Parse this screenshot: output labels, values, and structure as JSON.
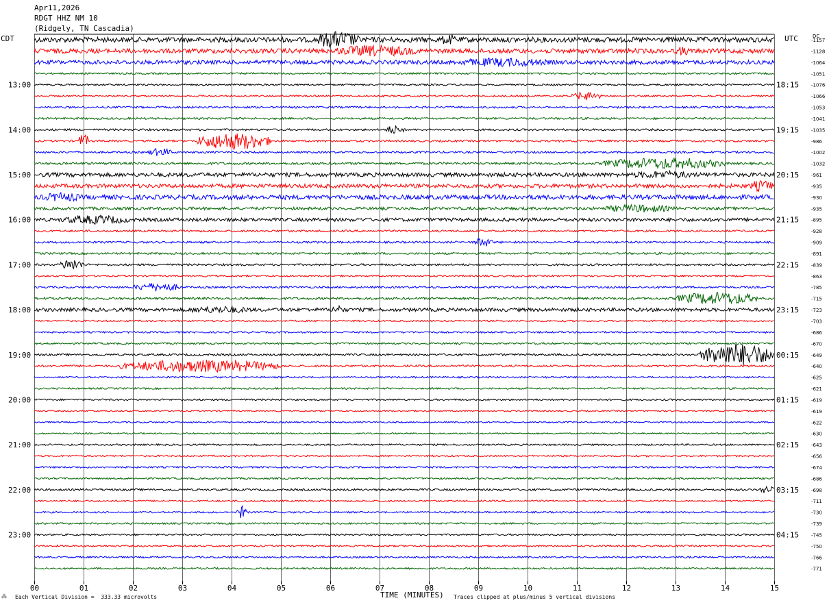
{
  "header": {
    "date": "Apr11,2026",
    "station": "RDGT HHZ NM 10",
    "location": "(Ridgely, TN Cascadia)"
  },
  "left_zone": "CDT",
  "right_zone": "UTC",
  "dc_header": "DC",
  "footer": {
    "marker": "⁂",
    "division": "Each Vertical Division =  333.33 microvolts",
    "clip": "Traces clipped at plus/minus 5 vertical divisions"
  },
  "colors": {
    "black": "#000000",
    "red": "#ff0000",
    "blue": "#0000ff",
    "green": "#006400",
    "grid": "#000000"
  },
  "chart_data": {
    "type": "line",
    "title": "RDGT HHZ NM 10",
    "xlabel": "TIME (MINUTES)",
    "ylabel": "",
    "x_ticks": [
      "00",
      "01",
      "02",
      "03",
      "04",
      "05",
      "06",
      "07",
      "08",
      "09",
      "10",
      "11",
      "12",
      "13",
      "14",
      "15"
    ],
    "xlim": [
      0,
      15
    ],
    "grid": true,
    "trace_color_cycle": [
      "black",
      "red",
      "blue",
      "green"
    ],
    "left_hour_labels": [
      "13:00",
      "14:00",
      "15:00",
      "16:00",
      "17:00",
      "18:00",
      "19:00",
      "20:00",
      "21:00",
      "22:00",
      "23:00"
    ],
    "right_hour_labels": [
      "18:15",
      "19:15",
      "20:15",
      "21:15",
      "22:15",
      "23:15",
      "00:15",
      "01:15",
      "02:15",
      "03:15",
      "04:15"
    ],
    "dc_offsets": [
      -1157,
      -1128,
      -1064,
      -1051,
      -1076,
      -1066,
      -1053,
      -1041,
      -1035,
      -986,
      -1002,
      -1032,
      -961,
      -935,
      -930,
      -935,
      -895,
      -928,
      -909,
      -891,
      -839,
      -863,
      -785,
      -715,
      -723,
      -703,
      -686,
      -670,
      -649,
      -640,
      -625,
      -621,
      -619,
      -619,
      -622,
      -630,
      -643,
      -656,
      -674,
      -686,
      -698,
      -711,
      -730,
      -739,
      -745,
      -750,
      -766,
      -771
    ],
    "traces": [
      {
        "amp": 0.9,
        "events": [
          {
            "start": 5.7,
            "end": 6.6,
            "amp": 3
          },
          {
            "start": 8.2,
            "end": 8.6,
            "amp": 1.8
          }
        ]
      },
      {
        "amp": 0.8,
        "events": [
          {
            "start": 6.0,
            "end": 7.8,
            "amp": 2
          },
          {
            "start": 13.0,
            "end": 13.3,
            "amp": 1.6
          }
        ]
      },
      {
        "amp": 0.7,
        "events": [
          {
            "start": 8.5,
            "end": 10.5,
            "amp": 1.6
          }
        ]
      },
      {
        "amp": 0.3,
        "events": []
      },
      {
        "amp": 0.3,
        "events": []
      },
      {
        "amp": 0.3,
        "events": [
          {
            "start": 10.9,
            "end": 11.5,
            "amp": 1.5
          }
        ]
      },
      {
        "amp": 0.35,
        "events": []
      },
      {
        "amp": 0.35,
        "events": []
      },
      {
        "amp": 0.35,
        "events": [
          {
            "start": 7.1,
            "end": 7.5,
            "amp": 1.5
          }
        ]
      },
      {
        "amp": 0.35,
        "events": [
          {
            "start": 3.3,
            "end": 4.8,
            "amp": 3
          },
          {
            "start": 0.9,
            "end": 1.1,
            "amp": 2.5
          }
        ]
      },
      {
        "amp": 0.35,
        "events": [
          {
            "start": 2.3,
            "end": 2.8,
            "amp": 1.4
          }
        ]
      },
      {
        "amp": 0.4,
        "events": [
          {
            "start": 11.5,
            "end": 14.0,
            "amp": 2
          }
        ]
      },
      {
        "amp": 0.7,
        "events": [
          {
            "start": 12.0,
            "end": 13.5,
            "amp": 1.4
          }
        ]
      },
      {
        "amp": 0.7,
        "events": [
          {
            "start": 14.5,
            "end": 15.0,
            "amp": 2
          }
        ]
      },
      {
        "amp": 0.8,
        "events": [
          {
            "start": 0.1,
            "end": 1.0,
            "amp": 1.6
          }
        ]
      },
      {
        "amp": 0.5,
        "events": [
          {
            "start": 11.5,
            "end": 13.0,
            "amp": 1.4
          }
        ]
      },
      {
        "amp": 0.6,
        "events": [
          {
            "start": 0.5,
            "end": 2.0,
            "amp": 1.6
          }
        ]
      },
      {
        "amp": 0.35,
        "events": []
      },
      {
        "amp": 0.35,
        "events": [
          {
            "start": 8.9,
            "end": 9.3,
            "amp": 1.6
          }
        ]
      },
      {
        "amp": 0.35,
        "events": []
      },
      {
        "amp": 0.35,
        "events": [
          {
            "start": 0.5,
            "end": 1.0,
            "amp": 2
          }
        ]
      },
      {
        "amp": 0.3,
        "events": []
      },
      {
        "amp": 0.35,
        "events": [
          {
            "start": 2.0,
            "end": 3.0,
            "amp": 1.5
          }
        ]
      },
      {
        "amp": 0.4,
        "events": [
          {
            "start": 13.0,
            "end": 14.7,
            "amp": 2.2
          }
        ]
      },
      {
        "amp": 0.6,
        "events": [
          {
            "start": 3.0,
            "end": 4.5,
            "amp": 1.3
          },
          {
            "start": 6.0,
            "end": 6.3,
            "amp": 1.5
          }
        ]
      },
      {
        "amp": 0.3,
        "events": []
      },
      {
        "amp": 0.3,
        "events": []
      },
      {
        "amp": 0.3,
        "events": []
      },
      {
        "amp": 0.35,
        "events": [
          {
            "start": 13.5,
            "end": 15.0,
            "amp": 4
          }
        ]
      },
      {
        "amp": 0.35,
        "events": [
          {
            "start": 1.7,
            "end": 5.0,
            "amp": 2.2
          }
        ]
      },
      {
        "amp": 0.3,
        "events": []
      },
      {
        "amp": 0.3,
        "events": []
      },
      {
        "amp": 0.3,
        "events": []
      },
      {
        "amp": 0.25,
        "events": []
      },
      {
        "amp": 0.25,
        "events": []
      },
      {
        "amp": 0.25,
        "events": []
      },
      {
        "amp": 0.3,
        "events": []
      },
      {
        "amp": 0.3,
        "events": []
      },
      {
        "amp": 0.3,
        "events": []
      },
      {
        "amp": 0.3,
        "events": []
      },
      {
        "amp": 0.35,
        "events": [
          {
            "start": 14.7,
            "end": 15.0,
            "amp": 1.5
          }
        ]
      },
      {
        "amp": 0.3,
        "events": []
      },
      {
        "amp": 0.3,
        "events": [
          {
            "start": 4.1,
            "end": 4.3,
            "amp": 2.2
          }
        ]
      },
      {
        "amp": 0.3,
        "events": []
      },
      {
        "amp": 0.3,
        "events": []
      },
      {
        "amp": 0.3,
        "events": []
      },
      {
        "amp": 0.3,
        "events": []
      },
      {
        "amp": 0.3,
        "events": []
      }
    ]
  }
}
